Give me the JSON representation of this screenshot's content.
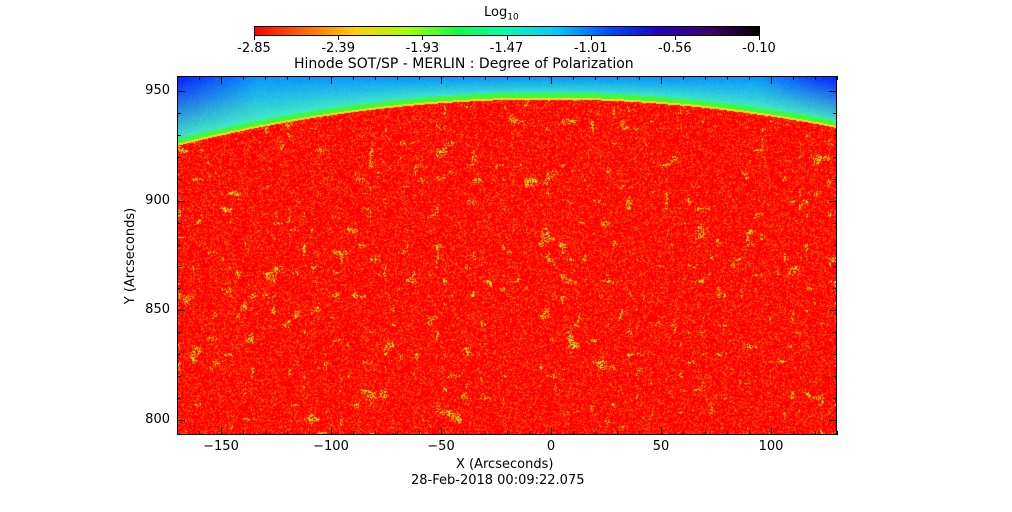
{
  "colorbar": {
    "title_main": "Log",
    "title_sub": "10",
    "ticks": [
      "-2.85",
      "-2.39",
      "-1.93",
      "-1.47",
      "-1.01",
      "-0.56",
      "-0.10"
    ],
    "colors": [
      "#ff0000",
      "#ff6a00",
      "#ffd200",
      "#a8ff00",
      "#10ff40",
      "#00ffb0",
      "#00c8ff",
      "#0050ff",
      "#2000c0",
      "#40006a",
      "#000000"
    ]
  },
  "figure": {
    "title": "Hinode SOT/SP - MERLIN : Degree of Polarization",
    "xlabel": "X (Arcseconds)",
    "ylabel": "Y (Arcseconds)",
    "timestamp": "28-Feb-2018 00:09:22.075"
  },
  "axes": {
    "xlim": [
      -170,
      130
    ],
    "ylim": [
      793,
      957
    ],
    "xticks": [
      -150,
      -100,
      -50,
      0,
      50,
      100
    ],
    "yticks": [
      800,
      850,
      900,
      950
    ]
  },
  "image": {
    "disk_color": "#ff1a00",
    "limb_color": "#2cff60",
    "offlimb_color": "#2fa8ff",
    "corner_color": "#0020c0"
  }
}
